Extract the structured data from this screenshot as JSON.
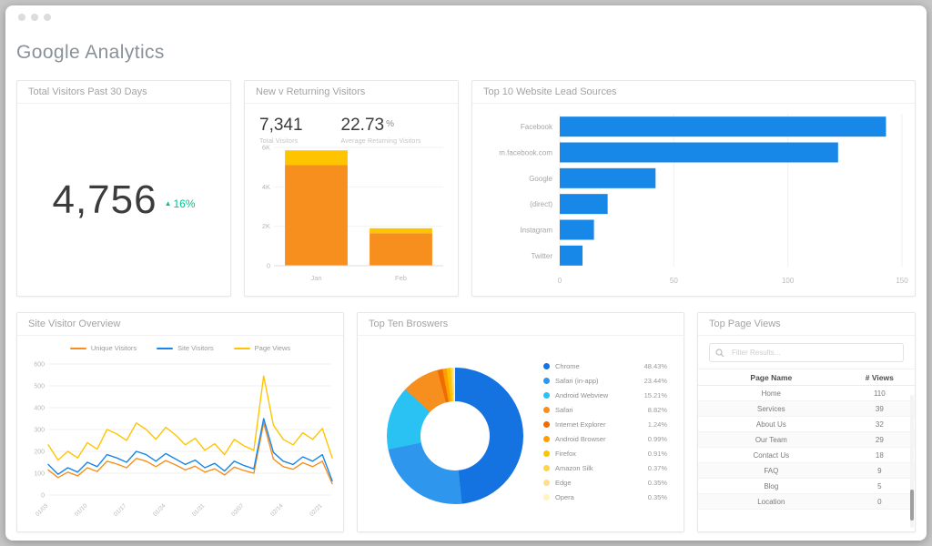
{
  "header": {
    "title": "Google Analytics"
  },
  "cards": {
    "total_visitors": {
      "title": "Total Visitors Past 30 Days",
      "value": "4,756",
      "delta_arrow": "▲",
      "delta": "16%",
      "delta_color": "#00c292"
    },
    "new_v_returning": {
      "title": "New v Returning Visitors",
      "stats": [
        {
          "value": "7,341",
          "unit": "",
          "label": "Total Visitors"
        },
        {
          "value": "22.73",
          "unit": "%",
          "label": "Average Returning Visitors"
        }
      ]
    },
    "lead_sources": {
      "title": "Top 10 Website Lead Sources"
    },
    "site_visitors": {
      "title": "Site Visitor Overview"
    },
    "browsers": {
      "title": "Top Ten Broswers"
    },
    "page_views": {
      "title": "Top Page Views",
      "search_placeholder": "Filter Results...",
      "columns": [
        "Page Name",
        "# Views"
      ],
      "rows": [
        [
          "Home",
          "110"
        ],
        [
          "Services",
          "39"
        ],
        [
          "About Us",
          "32"
        ],
        [
          "Our Team",
          "29"
        ],
        [
          "Contact Us",
          "18"
        ],
        [
          "FAQ",
          "9"
        ],
        [
          "Blog",
          "5"
        ],
        [
          "Location",
          "0"
        ]
      ]
    }
  },
  "colors": {
    "blue": "#1787e8",
    "orange": "#f78f1e",
    "yellow": "#ffc400",
    "green": "#00c292"
  },
  "chart_data": [
    {
      "name": "new_v_returning_visitors",
      "type": "bar",
      "stacked": true,
      "categories": [
        "Jan",
        "Feb"
      ],
      "series": [
        {
          "name": "New Visitors",
          "color": "#f78f1e",
          "values": [
            5100,
            1650
          ]
        },
        {
          "name": "Returning Visitors",
          "color": "#ffc400",
          "values": [
            750,
            250
          ]
        }
      ],
      "ylim": [
        0,
        6000
      ],
      "ytick_values": [
        0,
        2000,
        4000,
        6000
      ],
      "ytick_labels": [
        "0",
        "2K",
        "4K",
        "6K"
      ]
    },
    {
      "name": "top_10_website_lead_sources",
      "type": "bar",
      "orientation": "horizontal",
      "categories": [
        "Facebook",
        "m.facebook.com",
        "Google",
        "(direct)",
        "Instagram",
        "Twitter"
      ],
      "values": [
        143,
        122,
        42,
        21,
        15,
        10
      ],
      "xlim": [
        0,
        150
      ],
      "xticks": [
        0,
        50,
        100,
        150
      ],
      "color": "#1787e8"
    },
    {
      "name": "site_visitor_overview",
      "type": "line",
      "ylim": [
        0,
        600
      ],
      "ytick_step": 100,
      "x_tick_indices": [
        0,
        4,
        8,
        12,
        16,
        20,
        24,
        28
      ],
      "x_tick_labels": [
        "01/03",
        "01/10",
        "01/17",
        "01/24",
        "01/31",
        "02/07",
        "02/14",
        "02/21"
      ],
      "series": [
        {
          "name": "Unique Visitors",
          "color": "#f78f1e",
          "values": [
            115,
            80,
            105,
            88,
            125,
            108,
            155,
            142,
            125,
            168,
            155,
            130,
            158,
            138,
            115,
            132,
            105,
            120,
            92,
            128,
            112,
            100,
            330,
            165,
            130,
            118,
            148,
            130,
            155,
            52
          ]
        },
        {
          "name": "Site Visitors",
          "color": "#1787e8",
          "values": [
            140,
            95,
            125,
            105,
            150,
            130,
            185,
            170,
            150,
            200,
            185,
            155,
            190,
            165,
            140,
            160,
            125,
            145,
            110,
            155,
            135,
            120,
            350,
            195,
            155,
            140,
            175,
            155,
            185,
            65
          ]
        },
        {
          "name": "Page Views",
          "color": "#ffc400",
          "values": [
            230,
            160,
            200,
            170,
            240,
            210,
            300,
            280,
            250,
            330,
            300,
            255,
            310,
            275,
            230,
            260,
            205,
            235,
            185,
            255,
            225,
            205,
            545,
            320,
            255,
            230,
            285,
            255,
            305,
            170
          ]
        }
      ]
    },
    {
      "name": "top_ten_browsers",
      "type": "pie",
      "donut": true,
      "items": [
        {
          "label": "Chrome",
          "value": 48.43,
          "color": "#1473e0"
        },
        {
          "label": "Safari (in-app)",
          "value": 23.44,
          "color": "#2e96ec"
        },
        {
          "label": "Android Webview",
          "value": 15.21,
          "color": "#29c2f2"
        },
        {
          "label": "Safari",
          "value": 8.82,
          "color": "#f78f1e"
        },
        {
          "label": "Internet Explorer",
          "value": 1.24,
          "color": "#ef6c00"
        },
        {
          "label": "Android Browser",
          "value": 0.99,
          "color": "#ffa000"
        },
        {
          "label": "Firefox",
          "value": 0.91,
          "color": "#ffc400"
        },
        {
          "label": "Amazon Silk",
          "value": 0.37,
          "color": "#ffd34d"
        },
        {
          "label": "Edge",
          "value": 0.35,
          "color": "#ffe08a"
        },
        {
          "label": "Opera",
          "value": 0.35,
          "color": "#fff3c2"
        }
      ]
    }
  ]
}
